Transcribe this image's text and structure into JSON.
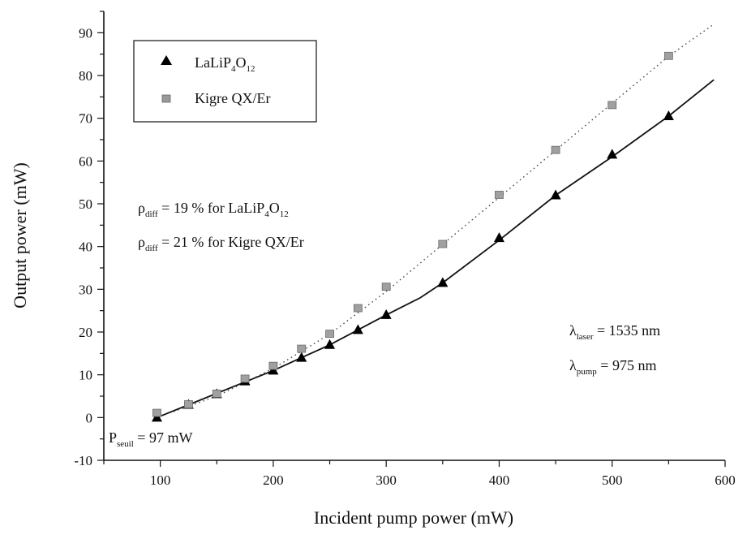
{
  "chart_data": {
    "type": "scatter",
    "xlabel": "Incident pump power (mW)",
    "ylabel": "Output power (mW)",
    "xlim": [
      50,
      600
    ],
    "ylim": [
      -10,
      95
    ],
    "x_ticks": [
      100,
      200,
      300,
      400,
      500,
      600
    ],
    "y_ticks": [
      -10,
      0,
      10,
      20,
      30,
      40,
      50,
      60,
      70,
      80,
      90
    ],
    "legend_position": "top-left",
    "series": [
      {
        "name_parts": [
          "LaLiP",
          "4",
          "O",
          "12"
        ],
        "marker": "filled-triangle",
        "color": "#000000",
        "points": [
          [
            97,
            0
          ],
          [
            125,
            3
          ],
          [
            150,
            5.5
          ],
          [
            175,
            8.5
          ],
          [
            200,
            11
          ],
          [
            225,
            14
          ],
          [
            250,
            17
          ],
          [
            275,
            20.5
          ],
          [
            300,
            24
          ],
          [
            350,
            31.5
          ],
          [
            400,
            42
          ],
          [
            450,
            52
          ],
          [
            500,
            61.5
          ],
          [
            550,
            70.5
          ]
        ],
        "fit_line": {
          "style": "solid",
          "points": [
            [
              97,
              0
            ],
            [
              200,
              11
            ],
            [
              250,
              17
            ],
            [
              300,
              24
            ],
            [
              330,
              28
            ],
            [
              350,
              31.5
            ],
            [
              400,
              41.5
            ],
            [
              450,
              52
            ],
            [
              500,
              61
            ],
            [
              550,
              70.5
            ],
            [
              590,
              79
            ]
          ]
        }
      },
      {
        "name_parts": [
          "Kigre QX/Er"
        ],
        "marker": "grey-square",
        "color": "#888888",
        "points": [
          [
            97,
            1
          ],
          [
            125,
            3
          ],
          [
            150,
            5.5
          ],
          [
            175,
            9
          ],
          [
            200,
            12
          ],
          [
            225,
            16
          ],
          [
            250,
            19.5
          ],
          [
            275,
            25.5
          ],
          [
            300,
            30.5
          ],
          [
            350,
            40.5
          ],
          [
            400,
            52
          ],
          [
            450,
            62.5
          ],
          [
            500,
            73
          ],
          [
            550,
            84.5
          ]
        ],
        "fit_line": {
          "style": "dotted",
          "points": [
            [
              97,
              0
            ],
            [
              150,
              5
            ],
            [
              200,
              11.5
            ],
            [
              250,
              19.5
            ],
            [
              300,
              29.5
            ],
            [
              350,
              40.5
            ],
            [
              400,
              51.5
            ],
            [
              450,
              62.5
            ],
            [
              500,
              73.5
            ],
            [
              550,
              84.5
            ],
            [
              590,
              92
            ]
          ]
        }
      }
    ],
    "annotations": {
      "rho1": {
        "symbol": "ρ",
        "sub": "diff",
        "mid": " = 19 % for LaLiP",
        "sub2": "4",
        "mid2": "O",
        "sub3": "12"
      },
      "rho2": {
        "symbol": "ρ",
        "sub": "diff",
        "mid": " = 21 % for Kigre QX/Er"
      },
      "lambda_laser": {
        "symbol": "λ",
        "sub": "laser",
        "mid": " = 1535 nm"
      },
      "lambda_pump": {
        "symbol": "λ",
        "sub": "pump",
        "mid": " = 975 nm"
      },
      "threshold": {
        "symbol": "P",
        "sub": "seuil",
        "mid": " = 97 mW"
      }
    }
  }
}
